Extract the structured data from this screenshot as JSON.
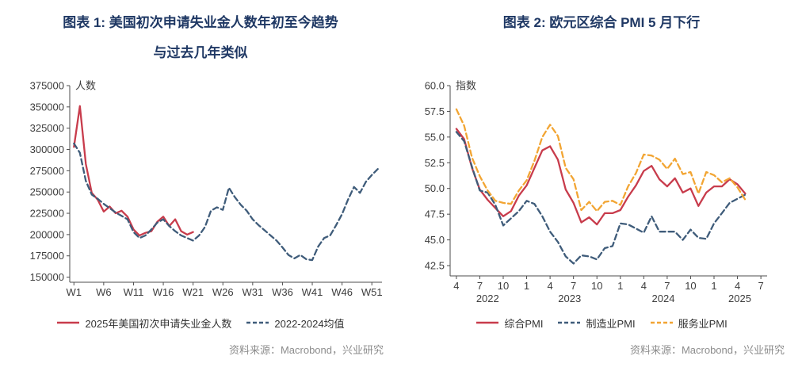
{
  "page": {
    "background": "#ffffff"
  },
  "colors": {
    "title": "#1f3864",
    "axis": "#4d4d4d",
    "tick_label": "#3d3d3d",
    "legend_text": "#333333",
    "source_text": "#8c8c8c",
    "red": "#c83c4c",
    "slate": "#3f5c7a",
    "orange": "#f2a533"
  },
  "chart_data": [
    {
      "type": "line",
      "title_lines": [
        "图表 1: 美国初次申请失业金人数年初至今趋势",
        "与过去几年类似"
      ],
      "unit_label": "人数",
      "source": "资料来源：Macrobond，兴业研究",
      "grid": false,
      "legend_position": "bottom",
      "ylim": [
        144000,
        375000
      ],
      "xlim": [
        0.3,
        52.7
      ],
      "yticks": [
        {
          "v": 150000,
          "label": "150000"
        },
        {
          "v": 175000,
          "label": "175000"
        },
        {
          "v": 200000,
          "label": "200000"
        },
        {
          "v": 225000,
          "label": "225000"
        },
        {
          "v": 250000,
          "label": "250000"
        },
        {
          "v": 275000,
          "label": "275000"
        },
        {
          "v": 300000,
          "label": "300000"
        },
        {
          "v": 325000,
          "label": "325000"
        },
        {
          "v": 350000,
          "label": "350000"
        },
        {
          "v": 375000,
          "label": "375000"
        }
      ],
      "xticks": [
        {
          "v": 1,
          "label": "W1"
        },
        {
          "v": 6,
          "label": "W6"
        },
        {
          "v": 11,
          "label": "W11"
        },
        {
          "v": 16,
          "label": "W16"
        },
        {
          "v": 21,
          "label": "W21"
        },
        {
          "v": 26,
          "label": "W26"
        },
        {
          "v": 31,
          "label": "W31"
        },
        {
          "v": 36,
          "label": "W36"
        },
        {
          "v": 41,
          "label": "W41"
        },
        {
          "v": 46,
          "label": "W46"
        },
        {
          "v": 51,
          "label": "W51"
        }
      ],
      "x_unit": "week of year",
      "series": [
        {
          "key": "claims-2025",
          "name": "2025年美国初次申请失业金人数",
          "color": "#c83c4c",
          "dash": null,
          "x_start": 1,
          "values": [
            303000,
            351000,
            283000,
            249000,
            241000,
            227000,
            233000,
            225000,
            228000,
            221000,
            206000,
            199000,
            202000,
            204000,
            215000,
            221000,
            210000,
            218000,
            204000,
            200000,
            203000
          ]
        },
        {
          "key": "mean-2022-2024",
          "name": "2022-2024均值",
          "color": "#3f5c7a",
          "dash": "7 4",
          "x_start": 1,
          "values": [
            307000,
            296000,
            263000,
            247000,
            242000,
            236000,
            231000,
            226000,
            222000,
            218000,
            203000,
            196000,
            199000,
            206000,
            214000,
            218000,
            210000,
            204000,
            199000,
            196000,
            193000,
            199000,
            209000,
            228000,
            232000,
            229000,
            255000,
            244000,
            235000,
            228000,
            218000,
            211000,
            205000,
            199000,
            193000,
            185000,
            176000,
            172000,
            176000,
            171000,
            170000,
            186000,
            196000,
            199000,
            211000,
            224000,
            241000,
            256000,
            249000,
            262000,
            270000,
            277000
          ]
        }
      ]
    },
    {
      "type": "line",
      "title_lines": [
        "图表 2: 欧元区综合 PMI 5 月下行"
      ],
      "unit_label": "指数",
      "source": "资料来源：Macrobond，兴业研究",
      "grid": false,
      "legend_position": "bottom",
      "ylim": [
        41.5,
        60.0
      ],
      "xlim": [
        -0.8,
        39.8
      ],
      "yticks": [
        {
          "v": 42.5,
          "label": "42.5"
        },
        {
          "v": 45.0,
          "label": "45.0"
        },
        {
          "v": 47.5,
          "label": "47.5"
        },
        {
          "v": 50.0,
          "label": "50.0"
        },
        {
          "v": 52.5,
          "label": "52.5"
        },
        {
          "v": 55.0,
          "label": "55.0"
        },
        {
          "v": 57.5,
          "label": "57.5"
        },
        {
          "v": 60.0,
          "label": "60.0"
        }
      ],
      "xticks": [
        {
          "v": 0,
          "label": "4"
        },
        {
          "v": 3,
          "label": "7"
        },
        {
          "v": 6,
          "label": "10"
        },
        {
          "v": 9,
          "label": "1"
        },
        {
          "v": 12,
          "label": "4"
        },
        {
          "v": 15,
          "label": "7"
        },
        {
          "v": 18,
          "label": "10"
        },
        {
          "v": 21,
          "label": "1"
        },
        {
          "v": 24,
          "label": "4"
        },
        {
          "v": 27,
          "label": "7"
        },
        {
          "v": 30,
          "label": "10"
        },
        {
          "v": 33,
          "label": "1"
        },
        {
          "v": 36,
          "label": "4"
        },
        {
          "v": 39,
          "label": "7"
        }
      ],
      "year_labels": [
        {
          "v": 4,
          "label": "2022"
        },
        {
          "v": 14.5,
          "label": "2023"
        },
        {
          "v": 26.5,
          "label": "2024"
        },
        {
          "v": 36.3,
          "label": "2025"
        }
      ],
      "x_unit": "month (monthly data, Apr 2022 - May 2025)",
      "series": [
        {
          "key": "composite-pmi",
          "name": "综合PMI",
          "color": "#c83c4c",
          "dash": null,
          "x_start": 0,
          "values": [
            55.8,
            54.8,
            52.0,
            49.9,
            48.9,
            48.1,
            47.3,
            47.8,
            49.3,
            50.3,
            52.0,
            53.7,
            54.1,
            52.8,
            49.9,
            48.6,
            46.7,
            47.2,
            46.5,
            47.6,
            47.6,
            47.9,
            49.2,
            50.3,
            51.7,
            52.2,
            50.9,
            50.2,
            51.0,
            49.6,
            50.0,
            48.3,
            49.6,
            50.2,
            50.2,
            50.9,
            50.4,
            49.5
          ]
        },
        {
          "key": "manufacturing-pmi",
          "name": "制造业PMI",
          "color": "#3f5c7a",
          "dash": "7 4",
          "x_start": 0,
          "values": [
            55.5,
            54.6,
            52.1,
            49.8,
            49.6,
            48.4,
            46.4,
            47.1,
            47.8,
            48.8,
            48.5,
            47.3,
            45.8,
            44.8,
            43.4,
            42.7,
            43.5,
            43.4,
            43.1,
            44.2,
            44.4,
            46.6,
            46.5,
            46.1,
            45.7,
            47.3,
            45.8,
            45.8,
            45.8,
            45.0,
            46.0,
            45.2,
            45.1,
            46.6,
            47.6,
            48.6,
            49.0,
            49.4
          ]
        },
        {
          "key": "services-pmi",
          "name": "服务业PMI",
          "color": "#f2a533",
          "dash": "7 4",
          "x_start": 0,
          "values": [
            57.7,
            56.1,
            53.0,
            51.2,
            49.8,
            48.8,
            48.6,
            48.5,
            49.8,
            50.8,
            52.7,
            55.0,
            56.2,
            55.1,
            52.0,
            50.9,
            47.9,
            48.7,
            47.8,
            48.7,
            48.8,
            48.4,
            50.2,
            51.5,
            53.3,
            53.2,
            52.8,
            51.9,
            52.9,
            51.4,
            51.6,
            49.5,
            51.6,
            51.3,
            50.6,
            51.0,
            50.1,
            48.9
          ]
        }
      ]
    }
  ]
}
